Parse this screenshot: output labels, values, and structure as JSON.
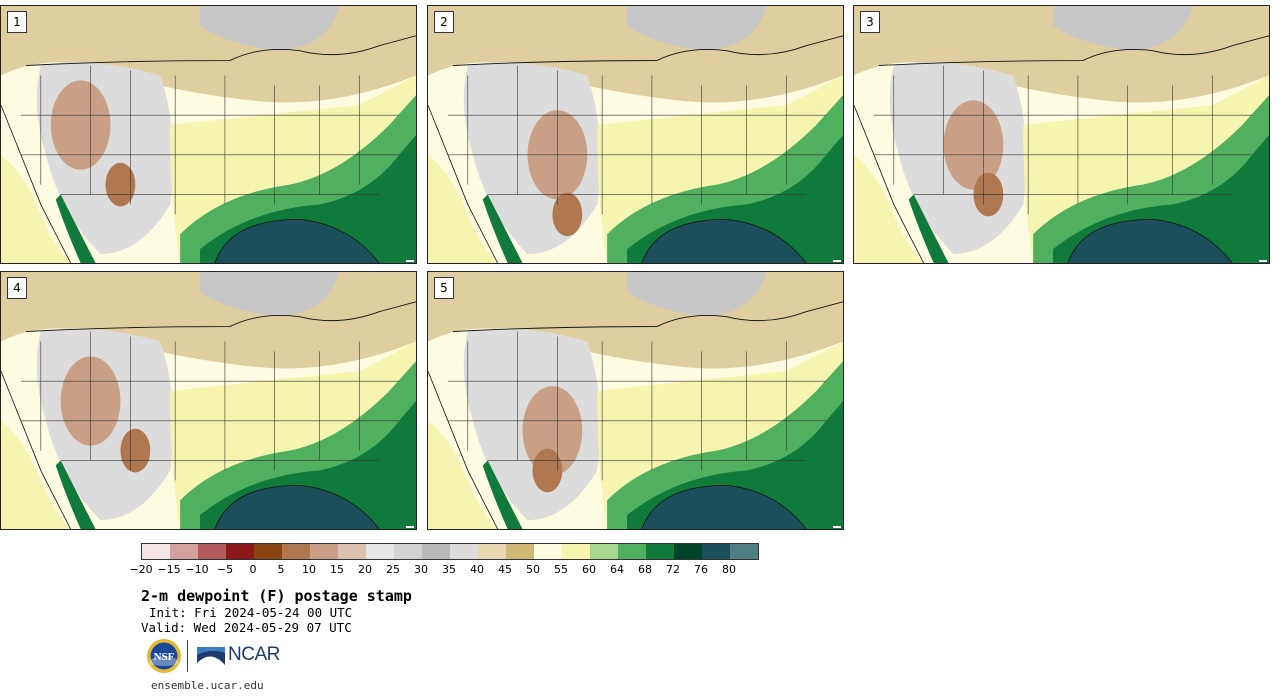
{
  "panels": [
    {
      "label": "1"
    },
    {
      "label": "2"
    },
    {
      "label": "3"
    },
    {
      "label": "4"
    },
    {
      "label": "5"
    }
  ],
  "colorbar": {
    "colors": [
      "#f3e6e6",
      "#d4a0a0",
      "#b25b5b",
      "#8a1a1a",
      "#8b4513",
      "#b07850",
      "#c9a085",
      "#dcc3b0",
      "#e6e6e6",
      "#d3d3d3",
      "#b9b9b9",
      "#dcdcdc",
      "#e6d8b0",
      "#d2b878",
      "#fdfde0",
      "#f5f5b0",
      "#a8d890",
      "#50b060",
      "#107a3a",
      "#00442a",
      "#1c4f5c",
      "#4f7f80"
    ],
    "ticks": [
      "−20",
      "−15",
      "−10",
      "−5",
      "0",
      "5",
      "10",
      "15",
      "20",
      "25",
      "30",
      "35",
      "40",
      "45",
      "50",
      "55",
      "60",
      "64",
      "68",
      "72",
      "76",
      "80"
    ]
  },
  "title": "2-m dewpoint (F) postage stamp",
  "init": "Init: Fri 2024-05-24 00 UTC",
  "valid": "Valid: Wed 2024-05-29 07 UTC",
  "logos": {
    "nsf": "NSF",
    "ncar": "NCAR"
  },
  "footer": "ensemble.ucar.edu"
}
